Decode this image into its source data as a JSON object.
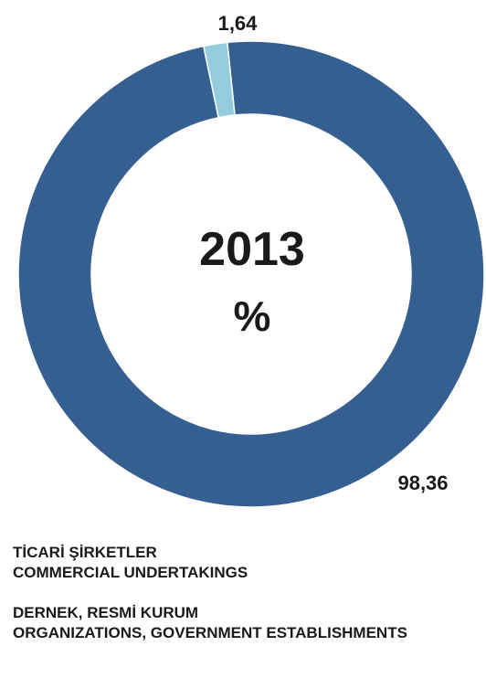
{
  "chart_data": {
    "type": "pie",
    "center_title": "2013",
    "center_unit": "%",
    "slices": [
      {
        "value": 98.36,
        "label_text": "98,36",
        "legend_tr": "",
        "legend_en": "",
        "color": "#365f91"
      },
      {
        "value": 1.64,
        "label_text": "1,64",
        "legend_tr": "",
        "legend_en": "",
        "color": "#93cddd"
      }
    ],
    "legend": [
      {
        "line1": "TİCARİ ŞİRKETLER",
        "line2": "COMMERCIAL UNDERTAKINGS"
      },
      {
        "line1": "DERNEK, RESMİ KURUM",
        "line2": "ORGANIZATIONS, GOVERNMENT ESTABLISHMENTS"
      }
    ]
  }
}
